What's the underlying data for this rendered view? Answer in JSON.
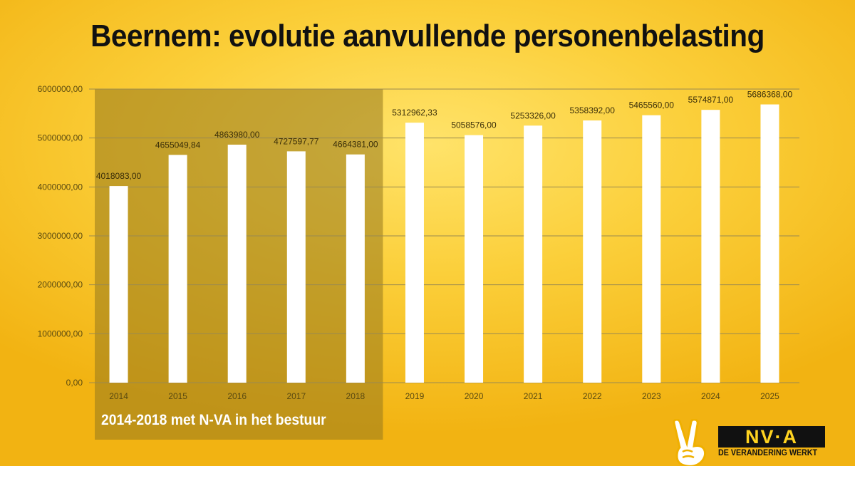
{
  "title": "Beernem: evolutie aanvullende personenbelasting",
  "overlay": {
    "label": "2014-2018 met N-VA in het bestuur",
    "from": "2014",
    "to": "2018"
  },
  "logo": {
    "mark": "NV·A",
    "tagline": "DE VERANDERING WERKT",
    "icon": "victory-hand-icon"
  },
  "colors": {
    "bar": "#ffffff",
    "grid": "#9a8a50",
    "axis_text": "#5a4a10",
    "overlay": "rgba(150,120,30,0.55)"
  },
  "chart_data": {
    "type": "bar",
    "categories": [
      "2014",
      "2015",
      "2016",
      "2017",
      "2018",
      "2019",
      "2020",
      "2021",
      "2022",
      "2023",
      "2024",
      "2025"
    ],
    "values": [
      4018083.0,
      4655049.84,
      4863980.0,
      4727597.77,
      4664381.0,
      5312962.33,
      5058576.0,
      5253326.0,
      5358392.0,
      5465560.0,
      5574871.0,
      5686368.0
    ],
    "value_labels": [
      "4018083,00",
      "4655049,84",
      "4863980,00",
      "4727597,77",
      "4664381,00",
      "5312962,33",
      "5058576,00",
      "5253326,00",
      "5358392,00",
      "5465560,00",
      "5574871,00",
      "5686368,00"
    ],
    "yticks": [
      0,
      1000000,
      2000000,
      3000000,
      4000000,
      5000000,
      6000000
    ],
    "ytick_labels": [
      "0,00",
      "1000000,00",
      "2000000,00",
      "3000000,00",
      "4000000,00",
      "5000000,00",
      "6000000,00"
    ],
    "ylim": [
      0,
      6000000
    ],
    "grid": true
  }
}
